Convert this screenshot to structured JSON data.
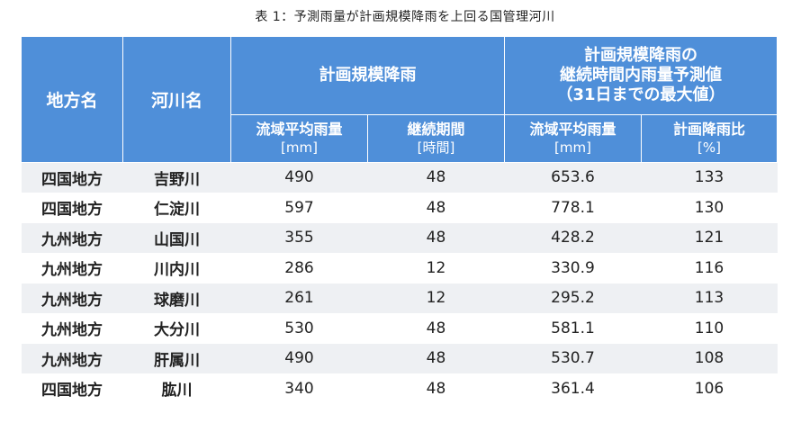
{
  "caption": "表 1：予測雨量が計画規模降雨を上回る国管理河川",
  "headers": {
    "region": "地方名",
    "river": "河川名",
    "planned_rain": "計画規模降雨",
    "forecast_group_line1": "計画規模降雨の",
    "forecast_group_line2": "継続時間内雨量予測値",
    "forecast_group_line3": "（31日までの最大値）",
    "basin_avg": "流域平均雨量",
    "unit_mm": "[mm]",
    "duration": "継続期間",
    "unit_hours": "[時間]",
    "basin_avg_2": "流域平均雨量",
    "unit_mm_2": "[mm]",
    "ratio": "計画降雨比",
    "unit_pct": "[%]"
  },
  "rows": [
    {
      "region": "四国地方",
      "river": "吉野川",
      "planned_mm": "490",
      "duration_h": "48",
      "forecast_mm": "653.6",
      "ratio_pct": "133"
    },
    {
      "region": "四国地方",
      "river": "仁淀川",
      "planned_mm": "597",
      "duration_h": "48",
      "forecast_mm": "778.1",
      "ratio_pct": "130"
    },
    {
      "region": "九州地方",
      "river": "山国川",
      "planned_mm": "355",
      "duration_h": "48",
      "forecast_mm": "428.2",
      "ratio_pct": "121"
    },
    {
      "region": "九州地方",
      "river": "川内川",
      "planned_mm": "286",
      "duration_h": "12",
      "forecast_mm": "330.9",
      "ratio_pct": "116"
    },
    {
      "region": "九州地方",
      "river": "球磨川",
      "planned_mm": "261",
      "duration_h": "12",
      "forecast_mm": "295.2",
      "ratio_pct": "113"
    },
    {
      "region": "九州地方",
      "river": "大分川",
      "planned_mm": "530",
      "duration_h": "48",
      "forecast_mm": "581.1",
      "ratio_pct": "110"
    },
    {
      "region": "九州地方",
      "river": "肝属川",
      "planned_mm": "490",
      "duration_h": "48",
      "forecast_mm": "530.7",
      "ratio_pct": "108"
    },
    {
      "region": "四国地方",
      "river": "肱川",
      "planned_mm": "340",
      "duration_h": "48",
      "forecast_mm": "361.4",
      "ratio_pct": "106"
    }
  ],
  "colors": {
    "header_bg": "#4f8fd9",
    "header_text": "#ffffff",
    "row_band": "#eef0f3",
    "row_plain": "#ffffff"
  }
}
